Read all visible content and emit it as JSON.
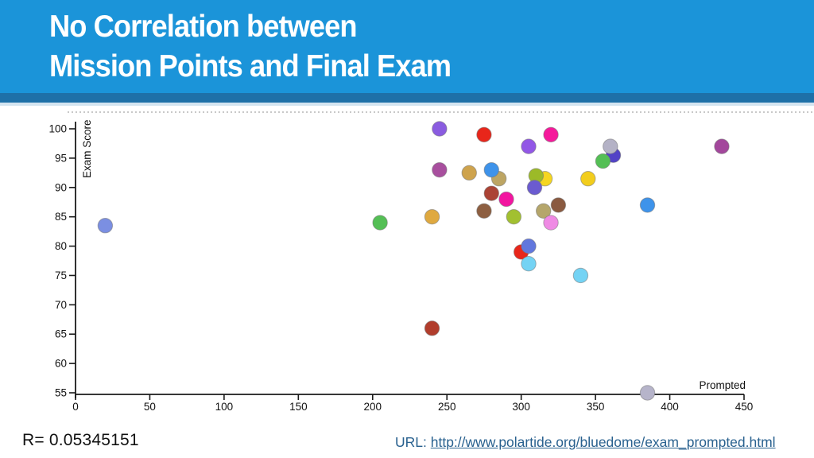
{
  "slide": {
    "title_line1": "No Correlation between",
    "title_line2": "Mission Points and Final Exam",
    "r_label": "R= 0.05345151",
    "url_prefix": "URL: ",
    "url_link": "http://www.polartide.org/bluedome/exam_prompted.html"
  },
  "colors": {
    "header_bg": "#1b94d9",
    "header_band": "#1e70a8",
    "header_band_light": "#d3e4f0",
    "title_text": "#ffffff",
    "link": "#29618f",
    "axis": "#1a1a1a",
    "tick_text": "#111111"
  },
  "chart_data": {
    "type": "scatter",
    "title": "",
    "xlabel": "Prompted",
    "ylabel": "Exam Score",
    "xlim": [
      0,
      450
    ],
    "ylim": [
      55,
      100
    ],
    "x_ticks": [
      0,
      50,
      100,
      150,
      200,
      250,
      300,
      350,
      400,
      450
    ],
    "y_ticks": [
      55,
      60,
      65,
      70,
      75,
      80,
      85,
      90,
      95,
      100
    ],
    "grid": false,
    "legend": "none",
    "points": [
      {
        "x": 20,
        "y": 83.5,
        "color": "#7b8fe2"
      },
      {
        "x": 205,
        "y": 84,
        "color": "#54bf55"
      },
      {
        "x": 240,
        "y": 85,
        "color": "#dfa940"
      },
      {
        "x": 240,
        "y": 66,
        "color": "#b13d2c"
      },
      {
        "x": 245,
        "y": 100,
        "color": "#8a5ce0"
      },
      {
        "x": 245,
        "y": 93,
        "color": "#a84f9e"
      },
      {
        "x": 265,
        "y": 92.5,
        "color": "#cea34d"
      },
      {
        "x": 275,
        "y": 99,
        "color": "#e8261a"
      },
      {
        "x": 285,
        "y": 91.5,
        "color": "#bda563"
      },
      {
        "x": 280,
        "y": 93,
        "color": "#3e93ea"
      },
      {
        "x": 275,
        "y": 86,
        "color": "#8d5f41"
      },
      {
        "x": 280,
        "y": 89,
        "color": "#ab4335"
      },
      {
        "x": 290,
        "y": 88,
        "color": "#f215a0"
      },
      {
        "x": 295,
        "y": 85,
        "color": "#a2c030"
      },
      {
        "x": 305,
        "y": 97,
        "color": "#9257e6"
      },
      {
        "x": 316,
        "y": 91.5,
        "color": "#f5d620"
      },
      {
        "x": 310,
        "y": 92,
        "color": "#9cba28"
      },
      {
        "x": 309,
        "y": 90,
        "color": "#6b5bd0"
      },
      {
        "x": 320,
        "y": 99,
        "color": "#f5199b"
      },
      {
        "x": 315,
        "y": 86,
        "color": "#b5a66b"
      },
      {
        "x": 320,
        "y": 84,
        "color": "#ef8ae4"
      },
      {
        "x": 325,
        "y": 87,
        "color": "#8a5a40"
      },
      {
        "x": 300,
        "y": 79,
        "color": "#e8261a"
      },
      {
        "x": 305,
        "y": 80,
        "color": "#6277dd"
      },
      {
        "x": 305,
        "y": 77,
        "color": "#74d3f4"
      },
      {
        "x": 340,
        "y": 75,
        "color": "#74d3f4"
      },
      {
        "x": 345,
        "y": 91.5,
        "color": "#f2cd1d"
      },
      {
        "x": 362,
        "y": 95.5,
        "color": "#5242c6"
      },
      {
        "x": 355,
        "y": 94.5,
        "color": "#54bf55"
      },
      {
        "x": 360,
        "y": 97,
        "color": "#b4b2c6"
      },
      {
        "x": 385,
        "y": 87,
        "color": "#3e93ea"
      },
      {
        "x": 385,
        "y": 55,
        "color": "#b6b4ca"
      },
      {
        "x": 435,
        "y": 97,
        "color": "#a3479c"
      }
    ]
  }
}
